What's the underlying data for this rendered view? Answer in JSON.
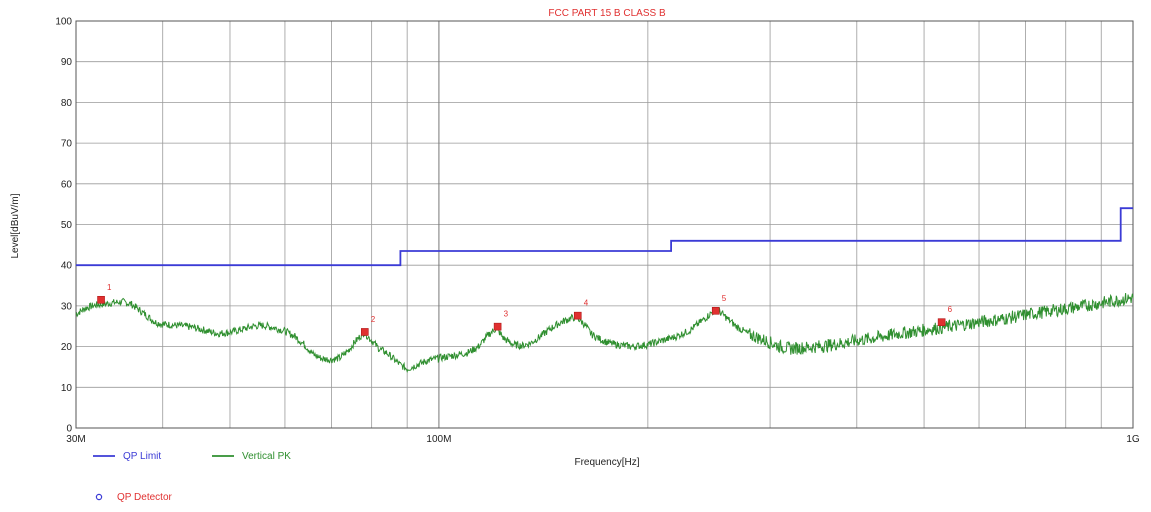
{
  "chart_data": {
    "type": "line",
    "title": "FCC PART 15 B CLASS B",
    "xlabel": "Frequency[Hz]",
    "ylabel": "Level[dBuV/m]",
    "x_scale": "log",
    "xlim": [
      30,
      1000
    ],
    "ylim": [
      0,
      100
    ],
    "x_tick_labels": [
      {
        "value": 30,
        "label": "30M"
      },
      {
        "value": 100,
        "label": "100M"
      },
      {
        "value": 1000,
        "label": "1G"
      }
    ],
    "y_ticks": [
      0,
      10,
      20,
      30,
      40,
      50,
      60,
      70,
      80,
      90,
      100
    ],
    "grid": true,
    "series": [
      {
        "name": "QP Limit",
        "color": "#3b3bd6",
        "points": [
          [
            30,
            40
          ],
          [
            88,
            40
          ],
          [
            88,
            43.5
          ],
          [
            216,
            43.5
          ],
          [
            216,
            46
          ],
          [
            960,
            46
          ],
          [
            960,
            54
          ],
          [
            1000,
            54
          ]
        ]
      },
      {
        "name": "Vertical PK",
        "color": "#2f8f2f",
        "points": [
          [
            30,
            28
          ],
          [
            31,
            29.5
          ],
          [
            32,
            30.2
          ],
          [
            33,
            30.5
          ],
          [
            34,
            30.8
          ],
          [
            35,
            31
          ],
          [
            36,
            30.5
          ],
          [
            37,
            29
          ],
          [
            38,
            27.5
          ],
          [
            39,
            26
          ],
          [
            40,
            25.5
          ],
          [
            42,
            25.2
          ],
          [
            44,
            24.8
          ],
          [
            46,
            24
          ],
          [
            48,
            23.2
          ],
          [
            50,
            23.5
          ],
          [
            52,
            24.2
          ],
          [
            54,
            25
          ],
          [
            56,
            25.2
          ],
          [
            58,
            24.6
          ],
          [
            60,
            23.8
          ],
          [
            62,
            22.5
          ],
          [
            64,
            20.5
          ],
          [
            66,
            18
          ],
          [
            68,
            17
          ],
          [
            70,
            16.8
          ],
          [
            72,
            17.2
          ],
          [
            74,
            19
          ],
          [
            76,
            21.5
          ],
          [
            78,
            23.5
          ],
          [
            80,
            21.5
          ],
          [
            82,
            19.5
          ],
          [
            84,
            18.5
          ],
          [
            86,
            17
          ],
          [
            88,
            15.5
          ],
          [
            90,
            14.5
          ],
          [
            93,
            15.5
          ],
          [
            96,
            16.5
          ],
          [
            100,
            17.2
          ],
          [
            105,
            17.8
          ],
          [
            110,
            18.5
          ],
          [
            114,
            20
          ],
          [
            118,
            23
          ],
          [
            121,
            24.5
          ],
          [
            124,
            22
          ],
          [
            128,
            20.5
          ],
          [
            132,
            20.2
          ],
          [
            136,
            21
          ],
          [
            140,
            22.5
          ],
          [
            145,
            24.5
          ],
          [
            150,
            26
          ],
          [
            155,
            27
          ],
          [
            158,
            27.2
          ],
          [
            162,
            25.5
          ],
          [
            166,
            23
          ],
          [
            170,
            22
          ],
          [
            175,
            21
          ],
          [
            180,
            20.5
          ],
          [
            190,
            20
          ],
          [
            200,
            20.5
          ],
          [
            210,
            21.5
          ],
          [
            220,
            22.5
          ],
          [
            230,
            24
          ],
          [
            240,
            26.5
          ],
          [
            248,
            28.5
          ],
          [
            252,
            29
          ],
          [
            258,
            27.5
          ],
          [
            268,
            25
          ],
          [
            280,
            23
          ],
          [
            290,
            22
          ],
          [
            300,
            21
          ],
          [
            310,
            20
          ],
          [
            320,
            19.5
          ],
          [
            340,
            19.8
          ],
          [
            360,
            20.2
          ],
          [
            380,
            20.8
          ],
          [
            400,
            21.5
          ],
          [
            430,
            22.3
          ],
          [
            460,
            23.2
          ],
          [
            490,
            23.8
          ],
          [
            520,
            24.5
          ],
          [
            560,
            25.2
          ],
          [
            600,
            26
          ],
          [
            650,
            26.8
          ],
          [
            700,
            27.8
          ],
          [
            750,
            28.6
          ],
          [
            800,
            29.3
          ],
          [
            850,
            30
          ],
          [
            900,
            30.7
          ],
          [
            950,
            31.4
          ],
          [
            1000,
            32
          ]
        ]
      }
    ],
    "markers": [
      {
        "id": "1",
        "x": 32.6,
        "y": 31.5
      },
      {
        "id": "2",
        "x": 78.2,
        "y": 23.6
      },
      {
        "id": "3",
        "x": 121.5,
        "y": 24.9
      },
      {
        "id": "4",
        "x": 158.5,
        "y": 27.6
      },
      {
        "id": "5",
        "x": 250.5,
        "y": 28.8
      },
      {
        "id": "6",
        "x": 530,
        "y": 26
      }
    ],
    "marker_color": "#e03030",
    "legend": [
      {
        "name": "QP Limit",
        "color": "#3b3bd6",
        "kind": "line"
      },
      {
        "name": "Vertical PK",
        "color": "#2f8f2f",
        "kind": "line"
      },
      {
        "name": "QP Detector",
        "color": "#3b3bd6",
        "kind": "circle"
      }
    ]
  }
}
